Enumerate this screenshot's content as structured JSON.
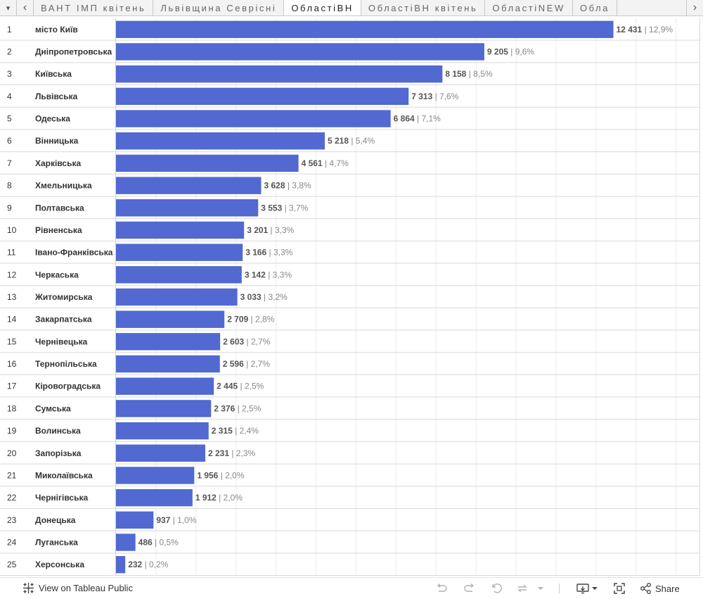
{
  "tabs": {
    "collapse_glyph": "▾",
    "prev_glyph": "‹",
    "next_glyph": "›",
    "items": [
      {
        "label": "ВАНТ ІМП квітень",
        "active": false
      },
      {
        "label": "Львівщина Севрісні",
        "active": false
      },
      {
        "label": "ОбластіВН",
        "active": true
      },
      {
        "label": "ОбластіВН квітень",
        "active": false
      },
      {
        "label": "ОбластіNEW",
        "active": false
      },
      {
        "label": "Обла",
        "active": false
      }
    ]
  },
  "colors": {
    "bar": "#5169d1",
    "row_border": "#d9d9d9",
    "gridline": "#ececec",
    "label_value": "#555555",
    "label_pct": "#888888"
  },
  "chart_data": {
    "type": "bar",
    "orientation": "horizontal",
    "title": "",
    "xlabel": "",
    "ylabel": "",
    "xlim": [
      0,
      14600
    ],
    "grid_step": 1000,
    "separator": " | ",
    "ranks": [
      "1",
      "2",
      "3",
      "4",
      "5",
      "6",
      "7",
      "8",
      "9",
      "10",
      "11",
      "12",
      "13",
      "14",
      "15",
      "16",
      "17",
      "18",
      "19",
      "20",
      "21",
      "22",
      "23",
      "24",
      "25"
    ],
    "categories": [
      "місто Київ",
      "Дніпропетровська",
      "Київська",
      "Львівська",
      "Одеська",
      "Вінницька",
      "Харківська",
      "Хмельницька",
      "Полтавська",
      "Рівненська",
      "Івано-Франківська",
      "Черкаська",
      "Житомирська",
      "Закарпатська",
      "Чернівецька",
      "Тернопільська",
      "Кіровоградська",
      "Сумська",
      "Волинська",
      "Запорізька",
      "Миколаївська",
      "Чернігівська",
      "Донецька",
      "Луганська",
      "Херсонська"
    ],
    "values": [
      12431,
      9205,
      8158,
      7313,
      6864,
      5218,
      4561,
      3628,
      3553,
      3201,
      3166,
      3142,
      3033,
      2709,
      2603,
      2596,
      2445,
      2376,
      2315,
      2231,
      1956,
      1912,
      937,
      486,
      232
    ],
    "value_labels": [
      "12 431",
      "9 205",
      "8 158",
      "7 313",
      "6 864",
      "5 218",
      "4 561",
      "3 628",
      "3 553",
      "3 201",
      "3 166",
      "3 142",
      "3 033",
      "2 709",
      "2 603",
      "2 596",
      "2 445",
      "2 376",
      "2 315",
      "2 231",
      "1 956",
      "1 912",
      "937",
      "486",
      "232"
    ],
    "pct_labels": [
      "12,9%",
      "9,6%",
      "8,5%",
      "7,6%",
      "7,1%",
      "5,4%",
      "4,7%",
      "3,8%",
      "3,7%",
      "3,3%",
      "3,3%",
      "3,3%",
      "3,2%",
      "2,8%",
      "2,7%",
      "2,7%",
      "2,5%",
      "2,5%",
      "2,4%",
      "2,3%",
      "2,0%",
      "2,0%",
      "1,0%",
      "0,5%",
      "0,2%"
    ]
  },
  "footer": {
    "view_label": "View on Tableau Public",
    "share_label": "Share",
    "icons": [
      "tableau-logo-icon",
      "undo-icon",
      "redo-icon",
      "revert-icon",
      "refresh-icon",
      "pause-icon",
      "download-icon",
      "fullscreen-icon",
      "share-icon"
    ]
  }
}
